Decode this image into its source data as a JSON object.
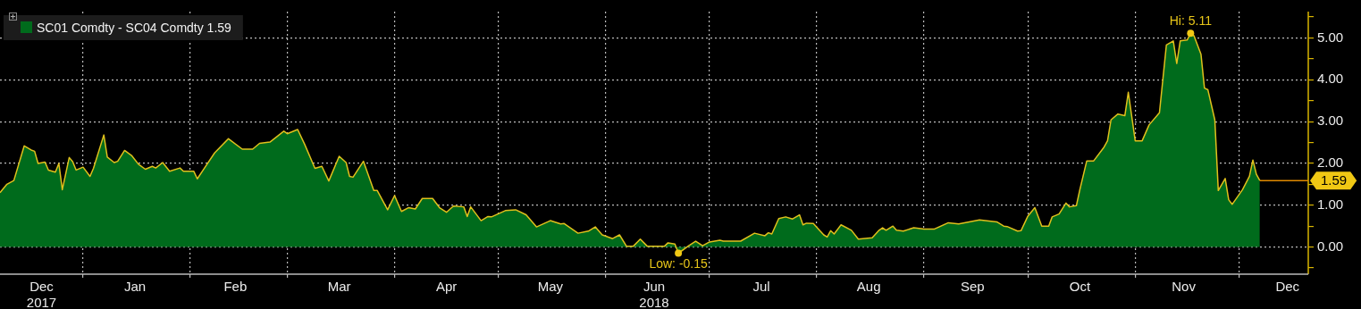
{
  "chart_data": {
    "type": "area",
    "x": [
      "2017-12-08",
      "2017-12-10",
      "2017-12-12",
      "2017-12-15",
      "2017-12-17",
      "2017-12-18",
      "2017-12-19",
      "2017-12-21",
      "2017-12-22",
      "2017-12-24",
      "2017-12-25",
      "2017-12-26",
      "2017-12-28",
      "2017-12-29",
      "2017-12-30",
      "2018-01-01",
      "2018-01-03",
      "2018-01-04",
      "2018-01-07",
      "2018-01-08",
      "2018-01-10",
      "2018-01-11",
      "2018-01-13",
      "2018-01-15",
      "2018-01-17",
      "2018-01-19",
      "2018-01-21",
      "2018-01-22",
      "2018-01-24",
      "2018-01-26",
      "2018-01-29",
      "2018-01-30",
      "2018-02-02",
      "2018-02-03",
      "2018-02-05",
      "2018-02-08",
      "2018-02-12",
      "2018-02-16",
      "2018-02-19",
      "2018-02-21",
      "2018-02-24",
      "2018-02-28",
      "2018-03-01",
      "2018-03-04",
      "2018-03-06",
      "2018-03-09",
      "2018-03-11",
      "2018-03-13",
      "2018-03-16",
      "2018-03-18",
      "2018-03-19",
      "2018-03-20",
      "2018-03-23",
      "2018-03-26",
      "2018-03-27",
      "2018-03-30",
      "2018-04-01",
      "2018-04-03",
      "2018-04-05",
      "2018-04-07",
      "2018-04-09",
      "2018-04-12",
      "2018-04-14",
      "2018-04-16",
      "2018-04-18",
      "2018-04-21",
      "2018-04-22",
      "2018-04-23",
      "2018-04-26",
      "2018-04-28",
      "2018-04-29",
      "2018-05-03",
      "2018-05-06",
      "2018-05-09",
      "2018-05-12",
      "2018-05-16",
      "2018-05-19",
      "2018-05-20",
      "2018-05-24",
      "2018-05-27",
      "2018-05-29",
      "2018-05-31",
      "2018-06-03",
      "2018-06-05",
      "2018-06-07",
      "2018-06-09",
      "2018-06-11",
      "2018-06-13",
      "2018-06-18",
      "2018-06-19",
      "2018-06-21",
      "2018-06-22",
      "2018-06-25",
      "2018-06-27",
      "2018-06-29",
      "2018-07-01",
      "2018-07-04",
      "2018-07-05",
      "2018-07-10",
      "2018-07-14",
      "2018-07-17",
      "2018-07-18",
      "2018-07-19",
      "2018-07-21",
      "2018-07-23",
      "2018-07-25",
      "2018-07-27",
      "2018-07-28",
      "2018-07-29",
      "2018-07-31",
      "2018-08-03",
      "2018-08-04",
      "2018-08-05",
      "2018-08-06",
      "2018-08-08",
      "2018-08-11",
      "2018-08-13",
      "2018-08-17",
      "2018-08-19",
      "2018-08-20",
      "2018-08-21",
      "2018-08-23",
      "2018-08-24",
      "2018-08-26",
      "2018-08-29",
      "2018-09-01",
      "2018-09-04",
      "2018-09-08",
      "2018-09-11",
      "2018-09-17",
      "2018-09-22",
      "2018-09-24",
      "2018-09-25",
      "2018-09-28",
      "2018-09-29",
      "2018-10-01",
      "2018-10-03",
      "2018-10-05",
      "2018-10-07",
      "2018-10-08",
      "2018-10-10",
      "2018-10-12",
      "2018-10-13",
      "2018-10-15",
      "2018-10-16",
      "2018-10-18",
      "2018-10-20",
      "2018-10-23",
      "2018-10-24",
      "2018-10-25",
      "2018-10-27",
      "2018-10-29",
      "2018-10-30",
      "2018-11-01",
      "2018-11-03",
      "2018-11-05",
      "2018-11-08",
      "2018-11-10",
      "2018-11-12",
      "2018-11-13",
      "2018-11-14",
      "2018-11-16",
      "2018-11-17",
      "2018-11-18",
      "2018-11-20",
      "2018-11-21",
      "2018-11-22",
      "2018-11-24",
      "2018-11-25",
      "2018-11-27",
      "2018-11-28",
      "2018-11-29",
      "2018-12-02",
      "2018-12-04",
      "2018-12-05",
      "2018-12-06",
      "2018-12-07"
    ],
    "series": [
      {
        "name": "SC01 Comdty - SC04 Comdty 1.59",
        "color": "#006b1c",
        "values": [
          1.3,
          1.5,
          1.59,
          2.42,
          2.32,
          2.29,
          2.0,
          2.03,
          1.84,
          1.79,
          2.0,
          1.37,
          2.14,
          2.04,
          1.84,
          1.91,
          1.69,
          1.88,
          2.68,
          2.15,
          2.02,
          2.05,
          2.31,
          2.19,
          1.98,
          1.86,
          1.93,
          1.89,
          2.02,
          1.81,
          1.89,
          1.81,
          1.81,
          1.63,
          1.88,
          2.25,
          2.59,
          2.34,
          2.34,
          2.48,
          2.51,
          2.77,
          2.71,
          2.81,
          2.46,
          1.88,
          1.93,
          1.58,
          2.17,
          2.02,
          1.69,
          1.67,
          2.05,
          1.35,
          1.35,
          0.89,
          1.23,
          0.85,
          0.94,
          0.91,
          1.16,
          1.16,
          0.94,
          0.83,
          0.98,
          0.96,
          0.73,
          0.96,
          0.63,
          0.73,
          0.72,
          0.87,
          0.89,
          0.77,
          0.48,
          0.63,
          0.55,
          0.56,
          0.33,
          0.38,
          0.48,
          0.29,
          0.2,
          0.29,
          0.02,
          0.02,
          0.19,
          0.02,
          0.02,
          0.1,
          0.07,
          -0.15,
          0.03,
          0.14,
          0.03,
          0.12,
          0.16,
          0.14,
          0.14,
          0.33,
          0.27,
          0.34,
          0.31,
          0.68,
          0.72,
          0.67,
          0.77,
          0.53,
          0.57,
          0.56,
          0.29,
          0.24,
          0.39,
          0.31,
          0.53,
          0.4,
          0.19,
          0.22,
          0.4,
          0.46,
          0.4,
          0.5,
          0.4,
          0.38,
          0.46,
          0.43,
          0.43,
          0.58,
          0.55,
          0.65,
          0.6,
          0.5,
          0.49,
          0.38,
          0.39,
          0.74,
          0.94,
          0.5,
          0.5,
          0.72,
          0.79,
          1.05,
          0.96,
          0.99,
          1.37,
          2.06,
          2.06,
          2.39,
          2.54,
          3.04,
          3.18,
          3.14,
          3.7,
          2.54,
          2.54,
          2.92,
          3.21,
          4.83,
          4.93,
          4.39,
          4.93,
          4.95,
          5.11,
          5.05,
          4.61,
          3.8,
          3.76,
          3.04,
          1.35,
          1.64,
          1.13,
          1.02,
          1.37,
          1.69,
          2.08,
          1.74,
          1.59
        ]
      }
    ],
    "xlim": [
      "2017-12-08",
      "2018-12-21"
    ],
    "xticks": [
      {
        "value": "2017-12-20",
        "label": "Dec\n2017"
      },
      {
        "value": "2018-01-01",
        "label": null
      },
      {
        "value": "2018-01-16",
        "label": "Jan"
      },
      {
        "value": "2018-02-01",
        "label": null
      },
      {
        "value": "2018-02-14",
        "label": "Feb"
      },
      {
        "value": "2018-03-01",
        "label": null
      },
      {
        "value": "2018-03-16",
        "label": "Mar"
      },
      {
        "value": "2018-04-01",
        "label": null
      },
      {
        "value": "2018-04-16",
        "label": "Apr"
      },
      {
        "value": "2018-05-01",
        "label": null
      },
      {
        "value": "2018-05-16",
        "label": "May"
      },
      {
        "value": "2018-06-01",
        "label": null
      },
      {
        "value": "2018-06-15",
        "label": "Jun\n2018"
      },
      {
        "value": "2018-07-01",
        "label": null
      },
      {
        "value": "2018-07-16",
        "label": "Jul"
      },
      {
        "value": "2018-08-01",
        "label": null
      },
      {
        "value": "2018-08-16",
        "label": "Aug"
      },
      {
        "value": "2018-09-01",
        "label": null
      },
      {
        "value": "2018-09-15",
        "label": "Sep"
      },
      {
        "value": "2018-10-01",
        "label": null
      },
      {
        "value": "2018-10-16",
        "label": "Oct"
      },
      {
        "value": "2018-11-01",
        "label": null
      },
      {
        "value": "2018-11-15",
        "label": "Nov"
      },
      {
        "value": "2018-12-01",
        "label": null
      },
      {
        "value": "2018-12-15",
        "label": "Dec"
      }
    ],
    "ylim": [
      -0.65,
      5.63
    ],
    "yticks": [
      {
        "value": -0.5,
        "label": null
      },
      {
        "value": 0,
        "label": "0.00"
      },
      {
        "value": 0.5,
        "label": null
      },
      {
        "value": 1,
        "label": "1.00"
      },
      {
        "value": 1.5,
        "label": null
      },
      {
        "value": 2,
        "label": "2.00"
      },
      {
        "value": 2.5,
        "label": null
      },
      {
        "value": 3,
        "label": "3.00"
      },
      {
        "value": 3.5,
        "label": null
      },
      {
        "value": 4,
        "label": "4.00"
      },
      {
        "value": 4.5,
        "label": null
      },
      {
        "value": 5,
        "label": "5.00"
      },
      {
        "value": 5.5,
        "label": null
      }
    ],
    "grid": true,
    "legend": "top left",
    "line_style": "solid",
    "ref_lines": [
      {
        "axis": "y",
        "value": 1.59,
        "label": "1.59",
        "color": "#e08a00"
      }
    ],
    "annotations": [
      {
        "text": "Hi: 5.11",
        "x": "2018-11-17",
        "y": 5.11
      },
      {
        "text": "Low: -0.15",
        "x": "2018-06-22",
        "y": -0.15
      }
    ]
  }
}
